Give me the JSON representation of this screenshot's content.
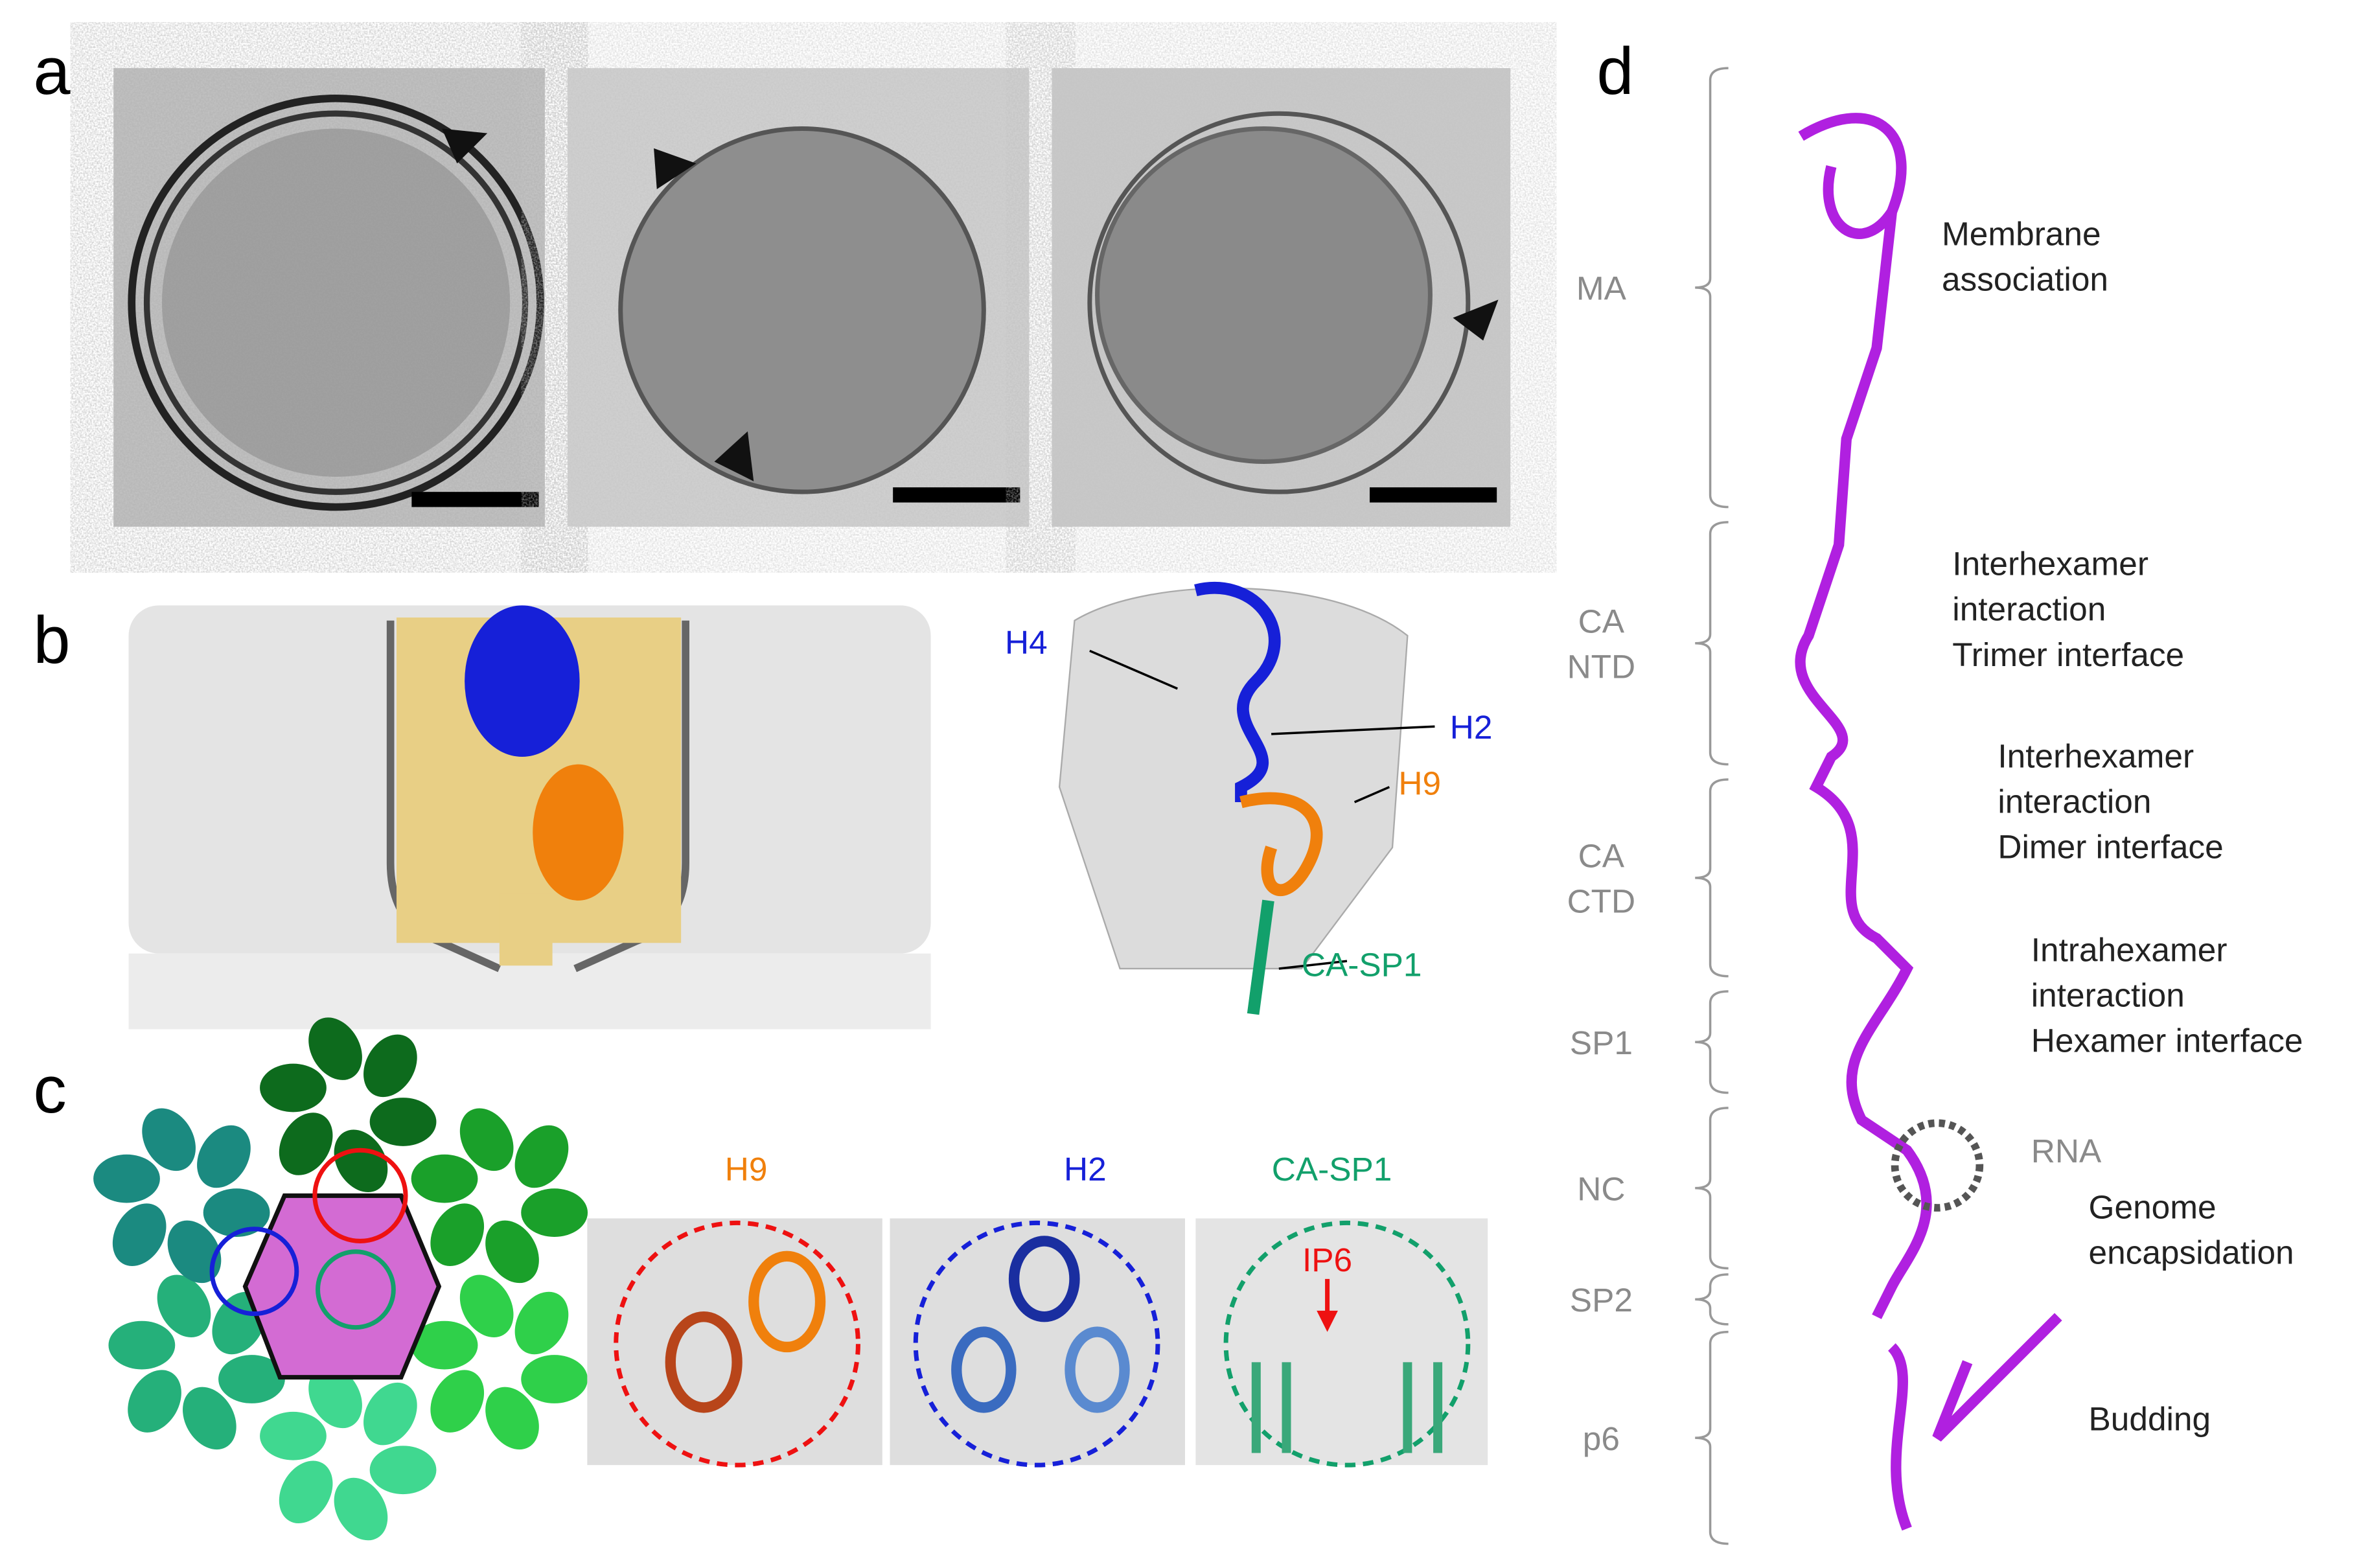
{
  "panel_a": {
    "label": "a"
  },
  "panel_b": {
    "label": "b",
    "helices": [
      "H4",
      "H2",
      "H9",
      "CA-SP1"
    ]
  },
  "panel_c": {
    "label": "c",
    "insets": [
      "H9",
      "H2",
      "CA-SP1"
    ],
    "annotation": "IP6"
  },
  "panel_d": {
    "label": "d",
    "domains": [
      [
        "MA"
      ],
      [
        "CA",
        "NTD"
      ],
      [
        "CA",
        "CTD"
      ],
      [
        "SP1"
      ],
      [
        "NC"
      ],
      [
        "SP2"
      ],
      [
        "p6"
      ]
    ],
    "functions": [
      [
        "Membrane",
        "association"
      ],
      [
        "Interhexamer",
        "interaction",
        "Trimer interface"
      ],
      [
        "Interhexamer",
        "interaction",
        "Dimer interface"
      ],
      [
        "Intrahexamer",
        "interaction",
        "Hexamer interface"
      ],
      [
        "Genome",
        "encapsidation"
      ],
      [
        "Budding"
      ]
    ],
    "rna": "RNA"
  }
}
